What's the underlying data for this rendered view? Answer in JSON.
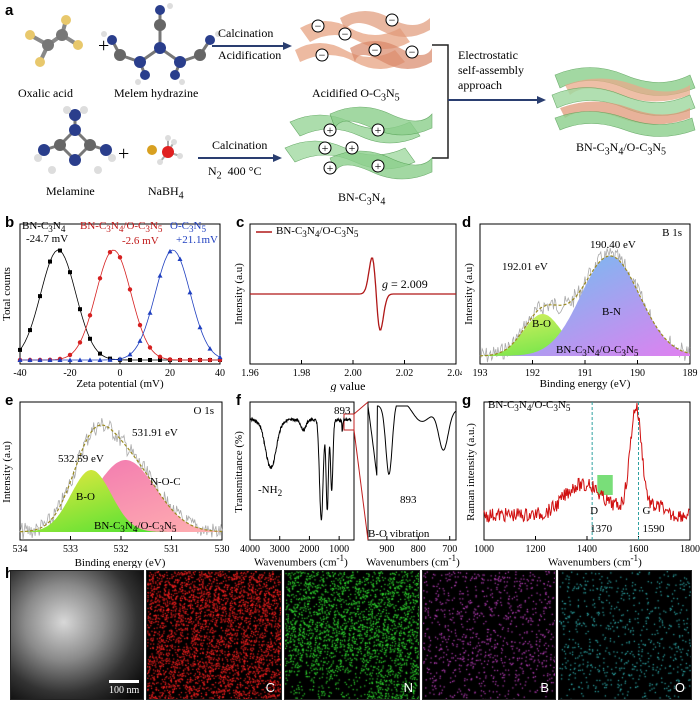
{
  "panel_labels": {
    "a": "a",
    "b": "b",
    "c": "c",
    "d": "d",
    "e": "e",
    "f": "f",
    "g": "g",
    "h": "h"
  },
  "scheme": {
    "oxalic_acid": "Oxalic  acid",
    "melem_hydrazine": "Melem hydrazine",
    "melamine": "Melamine",
    "nabh4": "NaBH",
    "nabh4_sub": "4",
    "plus": "+",
    "step1_line1": "Calcination",
    "step1_line2": "Acidification",
    "step2_line1": "Calcination",
    "step2_line2": "N",
    "step2_sub": "2",
    "step2_temp": "400 °C",
    "product1": "Acidified O-C",
    "product1_sub1": "3",
    "product1_mid": "N",
    "product1_sub2": "5",
    "product2": "BN-C",
    "product2_sub1": "3",
    "product2_mid": "N",
    "product2_sub2": "4",
    "assembly_line1": "Electrostatic",
    "assembly_line2": "self-assembly",
    "assembly_line3": "approach",
    "final": "BN-C",
    "final_sub1": "3",
    "final_mid": "N",
    "final_sub2": "4",
    "final_tail": "/O-C",
    "final_sub3": "3",
    "final_n": "N",
    "final_sub4": "5",
    "minus": "−",
    "plus_charge": "+"
  },
  "chart_data": [
    {
      "panel": "b",
      "type": "scatter",
      "xlabel": "Zeta potential (mV)",
      "ylabel": "Total counts",
      "xlim": [
        -40,
        40
      ],
      "xticks": [
        -40,
        -20,
        0,
        20,
        40
      ],
      "series": [
        {
          "name": "BN-C3N4",
          "label": "BN-C",
          "sub1": "3",
          "mid": "N",
          "sub2": "4",
          "value_label": "-24.7 mV",
          "color": "#000000",
          "center": -24.7
        },
        {
          "name": "BN-C3N4/O-C3N5",
          "label": "BN-C",
          "sub1": "3",
          "mid": "N",
          "sub2": "4",
          "tail": "/O-C",
          "sub3": "3",
          "n": "N",
          "sub4": "5",
          "value_label": "-2.6 mV",
          "color": "#d62020",
          "center": -2.6
        },
        {
          "name": "O-C3N5",
          "label": "O-C",
          "sub1": "3",
          "mid": "N",
          "sub2": "5",
          "value_label": "+21.1mV",
          "color": "#2040c0",
          "center": 21.1
        }
      ]
    },
    {
      "panel": "c",
      "type": "line",
      "xlabel": "g value",
      "xlabel_g": "g",
      "xlabel_rest": " value",
      "ylabel": "Intensity (a.u)",
      "xlim": [
        1.96,
        2.04
      ],
      "xticks": [
        "1.96",
        "1.98",
        "2.00",
        "2.02",
        "2.04"
      ],
      "legend": "BN-C",
      "legend_sub1": "3",
      "legend_mid": "N",
      "legend_sub2": "4",
      "legend_tail": "/O-C",
      "legend_sub3": "3",
      "legend_n": "N",
      "legend_sub4": "5",
      "annotation_g": "g",
      "annotation_rest": " = 2.009",
      "g_value": 2.009,
      "color": "#b01818"
    },
    {
      "panel": "d",
      "type": "area",
      "title": "B 1s",
      "xlabel": "Binding energy (eV)",
      "ylabel": "Intensity (a.u)",
      "xlim": [
        193.5,
        188.5
      ],
      "xticks": [
        "193",
        "192",
        "191",
        "190",
        "189"
      ],
      "peaks": [
        {
          "label": "B-O",
          "position": 192.01,
          "position_label": "192.01 eV"
        },
        {
          "label": "B-N",
          "position": 190.4,
          "position_label": "190.40 eV"
        }
      ],
      "sample": "BN-C",
      "sample_sub1": "3",
      "sample_mid": "N",
      "sample_sub2": "4",
      "sample_tail": "/O-C",
      "sample_sub3": "3",
      "sample_n": "N",
      "sample_sub4": "5"
    },
    {
      "panel": "e",
      "type": "area",
      "title": "O 1s",
      "xlabel": "Binding energy (eV)",
      "ylabel": "Intensity (a.u)",
      "xlim": [
        534,
        530
      ],
      "xticks": [
        "534",
        "533",
        "532",
        "531",
        "530"
      ],
      "peaks": [
        {
          "label": "B-O",
          "position": 532.59,
          "position_label": "532.59 eV"
        },
        {
          "label": "N-O-C",
          "position": 531.91,
          "position_label": "531.91 eV"
        }
      ],
      "sample": "BN-C",
      "sample_sub1": "3",
      "sample_mid": "N",
      "sample_sub2": "4",
      "sample_tail": "/O-C",
      "sample_sub3": "3",
      "sample_n": "N",
      "sample_sub4": "5"
    },
    {
      "panel": "f",
      "type": "line",
      "xlabel": "Wavenumbers (cm",
      "xlabel_sup": "-1",
      "xlabel_end": ")",
      "ylabel": "Transmittance (%)",
      "xlim": [
        4000,
        500
      ],
      "xticks": [
        "4000",
        "3000",
        "2000",
        "1000"
      ],
      "inset_xticks": [
        "900",
        "800",
        "700"
      ],
      "annotations": {
        "nh2": "-NH",
        "nh2_sub": "2",
        "peak893": "893",
        "inset_peak": "893",
        "bo": "B-O vibration"
      },
      "inset_xlabel": "Wavenumbers (cm",
      "inset_xlabel_sup": "-1",
      "inset_xlabel_end": ")"
    },
    {
      "panel": "g",
      "type": "line",
      "xlabel": "Wavenumbers (cm",
      "xlabel_sup": "-1",
      "xlabel_end": ")",
      "ylabel": "Raman intensity (a.u.)",
      "xlim": [
        1000,
        1800
      ],
      "xticks": [
        "1000",
        "1200",
        "1400",
        "1600",
        "1800"
      ],
      "bands": [
        {
          "label": "D",
          "position": 1370,
          "position_label": "1370"
        },
        {
          "label": "G",
          "position": 1590,
          "position_label": "1590"
        }
      ],
      "sample": "BN-C",
      "sample_sub1": "3",
      "sample_mid": "N",
      "sample_sub2": "4",
      "sample_tail": "/O-C",
      "sample_sub3": "3",
      "sample_n": "N",
      "sample_sub4": "5",
      "color": "#d01010"
    }
  ],
  "maps": {
    "scale_bar": "100 nm",
    "elements": [
      {
        "label": "C",
        "color": "#ff2020"
      },
      {
        "label": "N",
        "color": "#30e030"
      },
      {
        "label": "B",
        "color": "#c040c0"
      },
      {
        "label": "O",
        "color": "#30b0b0"
      }
    ]
  }
}
